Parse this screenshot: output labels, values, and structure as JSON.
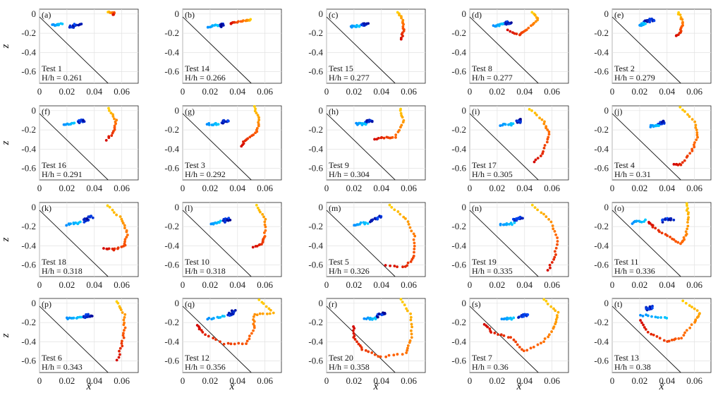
{
  "figure": {
    "ylabel": "z",
    "xlabel": "x̃",
    "colormap": [
      "#00008f",
      "#0050ff",
      "#00c8ff",
      "#ffd000",
      "#ff6000",
      "#d00000"
    ]
  },
  "chart_data": {
    "type": "scatter",
    "xlim": [
      0,
      0.072
    ],
    "ylim": [
      -0.72,
      0.05
    ],
    "xticks": [
      "0",
      "0.02",
      "0.04",
      "0.06"
    ],
    "yticks": [
      "0",
      "-0.2",
      "-0.4",
      "-0.6"
    ],
    "grid": true,
    "panels": [
      {
        "label": "(a)",
        "test": "Test 1",
        "hh": "H/h = 0.261"
      },
      {
        "label": "(b)",
        "test": "Test 14",
        "hh": "H/h = 0.266"
      },
      {
        "label": "(c)",
        "test": "Test 15",
        "hh": "H/h = 0.277"
      },
      {
        "label": "(d)",
        "test": "Test 8",
        "hh": "H/h = 0.277"
      },
      {
        "label": "(e)",
        "test": "Test 2",
        "hh": "H/h = 0.279"
      },
      {
        "label": "(f)",
        "test": "Test 16",
        "hh": "H/h = 0.291"
      },
      {
        "label": "(g)",
        "test": "Test 3",
        "hh": "H/h = 0.292"
      },
      {
        "label": "(h)",
        "test": "Test 9",
        "hh": "H/h = 0.304"
      },
      {
        "label": "(i)",
        "test": "Test 17",
        "hh": "H/h = 0.305"
      },
      {
        "label": "(j)",
        "test": "Test 4",
        "hh": "H/h = 0.31"
      },
      {
        "label": "(k)",
        "test": "Test 18",
        "hh": "H/h = 0.318"
      },
      {
        "label": "(l)",
        "test": "Test 10",
        "hh": "H/h = 0.318"
      },
      {
        "label": "(m)",
        "test": "Test 5",
        "hh": "H/h = 0.326"
      },
      {
        "label": "(n)",
        "test": "Test 19",
        "hh": "H/h = 0.335"
      },
      {
        "label": "(o)",
        "test": "Test 11",
        "hh": "H/h = 0.336"
      },
      {
        "label": "(p)",
        "test": "Test 6",
        "hh": "H/h = 0.343"
      },
      {
        "label": "(q)",
        "test": "Test 12",
        "hh": "H/h = 0.356"
      },
      {
        "label": "(r)",
        "test": "Test 20",
        "hh": "H/h = 0.358"
      },
      {
        "label": "(s)",
        "test": "Test 7",
        "hh": "H/h = 0.36"
      },
      {
        "label": "(t)",
        "test": "Test 13",
        "hh": "H/h = 0.38"
      }
    ]
  }
}
